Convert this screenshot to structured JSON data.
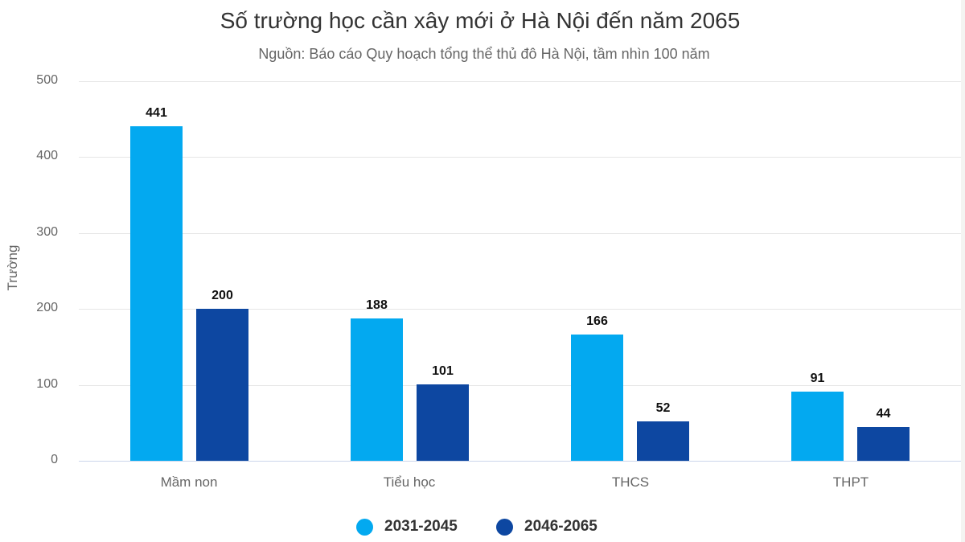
{
  "chart_data": {
    "type": "bar",
    "title": "Số trường học cần xây mới ở Hà Nội đến năm 2065",
    "subtitle": "Nguồn: Báo cáo Quy hoạch tổng thể thủ đô Hà Nội, tầm nhìn 100 năm",
    "xlabel": "",
    "ylabel": "Trường",
    "ylim": [
      0,
      500
    ],
    "yticks": [
      "0",
      "100",
      "200",
      "300",
      "400",
      "500"
    ],
    "grid": true,
    "legend_position": "bottom-center",
    "categories": [
      "Mầm non",
      "Tiểu học",
      "THCS",
      "THPT"
    ],
    "series": [
      {
        "name": "2031-2045",
        "color": "#03A9F0",
        "values": [
          441,
          188,
          166,
          91
        ]
      },
      {
        "name": "2046-2065",
        "color": "#0D47A1",
        "values": [
          200,
          101,
          52,
          44
        ]
      }
    ]
  }
}
